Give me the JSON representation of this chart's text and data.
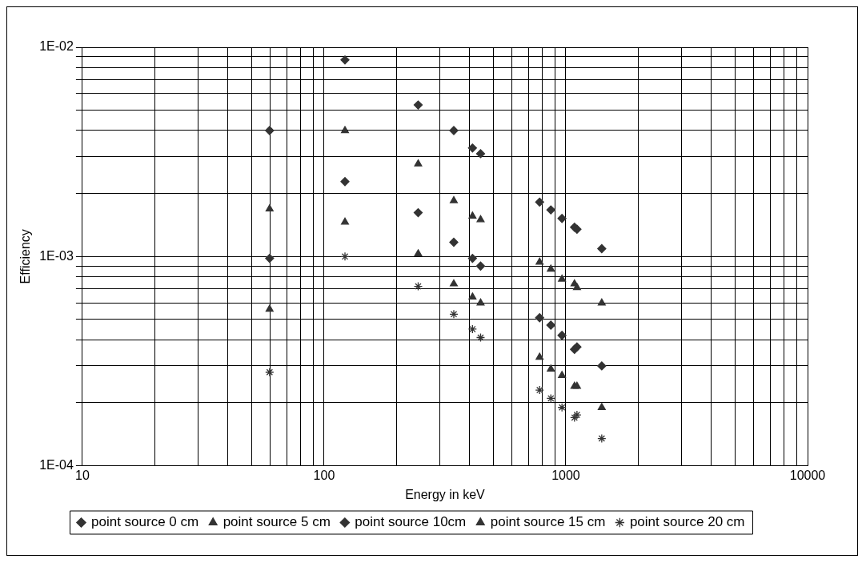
{
  "chart_data": {
    "type": "scatter",
    "xlabel": "Energy in keV",
    "ylabel": "Efficiency",
    "log": "xy",
    "grid": true,
    "legend": "bottom",
    "xlim": [
      10,
      10000
    ],
    "xticks": [
      10,
      {
        "value": 20,
        "label": null
      },
      {
        "value": 30,
        "label": null
      },
      {
        "value": 40,
        "label": null
      },
      {
        "value": 50,
        "label": null
      },
      {
        "value": 60,
        "label": null
      },
      {
        "value": 70,
        "label": null
      },
      {
        "value": 80,
        "label": null
      },
      {
        "value": 90,
        "label": null
      },
      100,
      {
        "value": 200,
        "label": null
      },
      {
        "value": 300,
        "label": null
      },
      {
        "value": 400,
        "label": null
      },
      {
        "value": 500,
        "label": null
      },
      {
        "value": 600,
        "label": null
      },
      {
        "value": 700,
        "label": null
      },
      {
        "value": 800,
        "label": null
      },
      {
        "value": 900,
        "label": null
      },
      1000,
      {
        "value": 2000,
        "label": null
      },
      {
        "value": 3000,
        "label": null
      },
      {
        "value": 4000,
        "label": null
      },
      {
        "value": 5000,
        "label": null
      },
      {
        "value": 6000,
        "label": null
      },
      {
        "value": 7000,
        "label": null
      },
      {
        "value": 8000,
        "label": null
      },
      {
        "value": 9000,
        "label": null
      },
      10000
    ],
    "ylim": [
      0.0001,
      0.01
    ],
    "yticks": [
      {
        "value": 0.0001,
        "label": "1E-04"
      },
      {
        "value": 0.0002,
        "label": null
      },
      {
        "value": 0.0003,
        "label": null
      },
      {
        "value": 0.0004,
        "label": null
      },
      {
        "value": 0.0005,
        "label": null
      },
      {
        "value": 0.0006,
        "label": null
      },
      {
        "value": 0.0007,
        "label": null
      },
      {
        "value": 0.0008,
        "label": null
      },
      {
        "value": 0.0009,
        "label": null
      },
      {
        "value": 0.001,
        "label": "1E-03"
      },
      {
        "value": 0.002,
        "label": null
      },
      {
        "value": 0.003,
        "label": null
      },
      {
        "value": 0.004,
        "label": null
      },
      {
        "value": 0.005,
        "label": null
      },
      {
        "value": 0.006,
        "label": null
      },
      {
        "value": 0.007,
        "label": null
      },
      {
        "value": 0.008,
        "label": null
      },
      {
        "value": 0.009,
        "label": null
      },
      {
        "value": 0.01,
        "label": "1E-02"
      }
    ],
    "x": [
      59.5,
      122,
      245,
      344,
      411,
      444,
      779,
      867,
      964,
      1086,
      1112,
      1408
    ],
    "series": [
      {
        "name": "point source 0 cm",
        "color": "#333333",
        "marker": "diamond",
        "values": [
          0.004,
          0.0087,
          0.0053,
          0.004,
          0.0033,
          0.0031,
          0.00182,
          0.00167,
          0.00152,
          0.00138,
          0.00135,
          0.00109
        ]
      },
      {
        "name": "point source 5 cm",
        "color": "#333333",
        "marker": "triangle",
        "values": [
          0.00169,
          0.004,
          0.00277,
          0.00185,
          0.00156,
          0.0015,
          0.00094,
          0.00087,
          0.00078,
          0.00074,
          0.00071,
          0.0006
        ]
      },
      {
        "name": "point source 10cm",
        "color": "#333333",
        "marker": "diamond",
        "values": [
          0.00098,
          0.00228,
          0.00162,
          0.00117,
          0.00098,
          0.0009,
          0.00051,
          0.00047,
          0.00042,
          0.00036,
          0.00037,
          0.0003
        ]
      },
      {
        "name": "point source 15 cm",
        "color": "#333333",
        "marker": "triangle",
        "values": [
          0.00056,
          0.00146,
          0.00103,
          0.00074,
          0.00064,
          0.0006,
          0.00033,
          0.00029,
          0.00027,
          0.00024,
          0.00024,
          0.00019
        ]
      },
      {
        "name": "point source 20 cm",
        "color": "#333333",
        "marker": "cross",
        "values": [
          0.00028,
          0.001,
          0.00072,
          0.00053,
          0.00045,
          0.00041,
          0.00023,
          0.00021,
          0.00019,
          0.00017,
          0.000175,
          0.000135
        ]
      }
    ]
  }
}
